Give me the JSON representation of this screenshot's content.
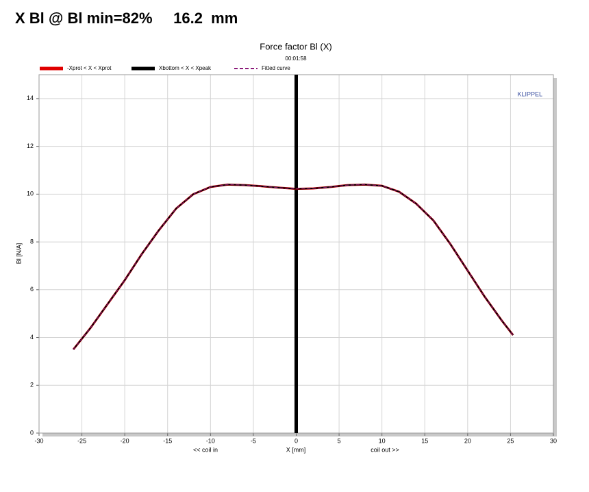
{
  "header": {
    "title": "X Bl @ Bl min=82%     16.2  mm"
  },
  "chart_data": {
    "type": "line",
    "title": "Force factor Bl (X)",
    "subtitle": "00:01:58",
    "annotation": "KLIPPEL",
    "xlabel": "X [mm]",
    "xlabel_left": "<< coil in",
    "xlabel_right": "coil out >>",
    "ylabel": "Bl [N/A]",
    "xlim": [
      -30,
      30
    ],
    "xticks": [
      -30,
      -25,
      -20,
      -15,
      -10,
      -5,
      0,
      5,
      10,
      15,
      20,
      25,
      30
    ],
    "ylim": [
      0,
      15
    ],
    "yticks": [
      0,
      2,
      4,
      6,
      8,
      10,
      12,
      14
    ],
    "grid": true,
    "vline": 0,
    "x": [
      -26,
      -24,
      -22,
      -20,
      -18,
      -16,
      -14,
      -12,
      -10,
      -8,
      -6,
      -4,
      -2,
      0,
      2,
      4,
      6,
      8,
      10,
      12,
      14,
      16,
      18,
      20,
      22,
      24,
      25.3
    ],
    "series": [
      {
        "name": "-Xprot < X < Xprot",
        "color": "#e00000",
        "width": 3,
        "dash": false,
        "values": [
          3.5,
          4.4,
          5.4,
          6.4,
          7.5,
          8.5,
          9.4,
          10.0,
          10.3,
          10.4,
          10.38,
          10.33,
          10.27,
          10.22,
          10.24,
          10.3,
          10.38,
          10.4,
          10.35,
          10.1,
          9.6,
          8.9,
          7.9,
          6.8,
          5.7,
          4.7,
          4.1
        ]
      },
      {
        "name": "Xbottom < X < Xpeak",
        "color": "#000000",
        "width": 2,
        "dash": false,
        "values": [
          3.5,
          4.4,
          5.4,
          6.4,
          7.5,
          8.5,
          9.4,
          10.0,
          10.3,
          10.4,
          10.38,
          10.33,
          10.27,
          10.22,
          10.24,
          10.3,
          10.38,
          10.4,
          10.35,
          10.1,
          9.6,
          8.9,
          7.9,
          6.8,
          5.7,
          4.7,
          4.1
        ]
      },
      {
        "name": "Fitted curve",
        "color": "#8b1a7a",
        "width": 1,
        "dash": true,
        "values": [
          3.5,
          4.4,
          5.4,
          6.4,
          7.5,
          8.5,
          9.4,
          10.0,
          10.3,
          10.4,
          10.38,
          10.33,
          10.27,
          10.22,
          10.24,
          10.3,
          10.38,
          10.4,
          10.35,
          10.1,
          9.6,
          8.9,
          7.9,
          6.8,
          5.7,
          4.7,
          4.1
        ]
      }
    ]
  }
}
